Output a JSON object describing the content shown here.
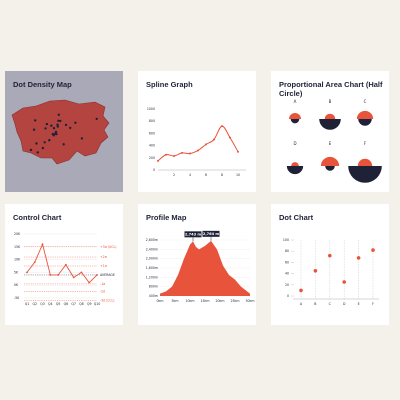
{
  "colors": {
    "accent": "#e8533c",
    "dark": "#1f2237",
    "map_fill": "#b3443f",
    "selected_card": "#a9a9b8",
    "page_bg": "#f4f1ea"
  },
  "cards": {
    "dot_density": {
      "title": "Dot Density Map"
    },
    "spline": {
      "title": "Spline Graph"
    },
    "half_circle": {
      "title": "Proportional Area Chart (Half Circle)"
    },
    "control": {
      "title": "Control Chart"
    },
    "profile": {
      "title": "Profile Map"
    },
    "dot_chart": {
      "title": "Dot Chart"
    }
  },
  "chart_data": [
    {
      "id": "dot_density",
      "type": "map",
      "title": "Dot Density Map",
      "dot_count": 28
    },
    {
      "id": "spline",
      "type": "line",
      "title": "Spline Graph",
      "y_ticks": [
        "1000",
        "800",
        "600",
        "400",
        "200",
        "0"
      ],
      "x_ticks": [
        "2",
        "4",
        "6",
        "8",
        "10"
      ],
      "ylim": [
        0,
        1000
      ],
      "xlim": [
        0,
        11
      ],
      "points": [
        [
          0,
          150
        ],
        [
          1,
          250
        ],
        [
          2,
          230
        ],
        [
          3,
          280
        ],
        [
          4,
          270
        ],
        [
          5,
          320
        ],
        [
          6,
          420
        ],
        [
          7,
          500
        ],
        [
          8,
          720
        ],
        [
          9,
          530
        ],
        [
          10,
          300
        ]
      ]
    },
    {
      "id": "half_circle",
      "type": "half-circle",
      "title": "Proportional Area Chart (Half Circle)",
      "items": [
        {
          "label": "A",
          "top": 2.5,
          "bottom": 1.8
        },
        {
          "label": "B",
          "top": 2.2,
          "bottom": 4.5
        },
        {
          "label": "C",
          "top": 3.4,
          "bottom": 2.8
        },
        {
          "label": "D",
          "top": 1.6,
          "bottom": 3.4
        },
        {
          "label": "E",
          "top": 3.8,
          "bottom": 2.0
        },
        {
          "label": "F",
          "top": 3.0,
          "bottom": 7.0
        }
      ]
    },
    {
      "id": "control",
      "type": "line",
      "title": "Control Chart",
      "y_ticks": [
        "20K",
        "15K",
        "10K",
        "5K",
        "0K",
        "-5K"
      ],
      "ylim": [
        -5,
        20
      ],
      "categories": [
        "Q1",
        "Q2",
        "Q3",
        "Q4",
        "Q5",
        "Q6",
        "Q7",
        "Q8",
        "Q9",
        "Q10"
      ],
      "values": [
        5,
        9,
        16,
        4,
        4,
        8,
        3,
        5,
        1,
        4
      ],
      "limits": [
        {
          "label": "+3σ (UCL)",
          "value": 15,
          "style": "dashed-red"
        },
        {
          "label": "+2σ",
          "value": 11,
          "style": "dashed-red"
        },
        {
          "label": "+1σ",
          "value": 7.5,
          "style": "dashed-red"
        },
        {
          "label": "AVERAGE",
          "value": 4,
          "style": "dashed-dark"
        },
        {
          "label": "-1σ",
          "value": 0.5,
          "style": "dashed-red"
        },
        {
          "label": "-2σ",
          "value": -2.5,
          "style": "dashed-red"
        },
        {
          "label": "-3σ (LCL)",
          "value": -6,
          "style": "dashed-red"
        }
      ]
    },
    {
      "id": "profile",
      "type": "area",
      "title": "Profile Map",
      "y_ticks": [
        "2,800m",
        "2,400m",
        "2,000m",
        "1,600m",
        "1,200m",
        "800m",
        "400m"
      ],
      "x_ticks": [
        "0km",
        "5km",
        "10km",
        "15km",
        "20km",
        "25km",
        "30km"
      ],
      "ylim": [
        400,
        2800
      ],
      "xlim": [
        0,
        30
      ],
      "peaks": [
        {
          "label": "2,743 m",
          "x": 11,
          "y": 2743
        },
        {
          "label": "2,764 m",
          "x": 17,
          "y": 2764
        }
      ],
      "points": [
        [
          0,
          500
        ],
        [
          2,
          600
        ],
        [
          4,
          800
        ],
        [
          6,
          1300
        ],
        [
          8,
          2000
        ],
        [
          10,
          2600
        ],
        [
          11,
          2743
        ],
        [
          12,
          2500
        ],
        [
          13,
          2400
        ],
        [
          15,
          2550
        ],
        [
          17,
          2764
        ],
        [
          19,
          2400
        ],
        [
          21,
          1700
        ],
        [
          23,
          1300
        ],
        [
          25,
          1100
        ],
        [
          27,
          800
        ],
        [
          30,
          500
        ]
      ]
    },
    {
      "id": "dot_chart",
      "type": "scatter",
      "title": "Dot Chart",
      "y_ticks": [
        "100",
        "80",
        "60",
        "40",
        "20",
        "0"
      ],
      "ylim": [
        0,
        100
      ],
      "categories": [
        "A",
        "B",
        "C",
        "D",
        "E",
        "F"
      ],
      "values": [
        10,
        45,
        72,
        25,
        68,
        82
      ]
    }
  ]
}
